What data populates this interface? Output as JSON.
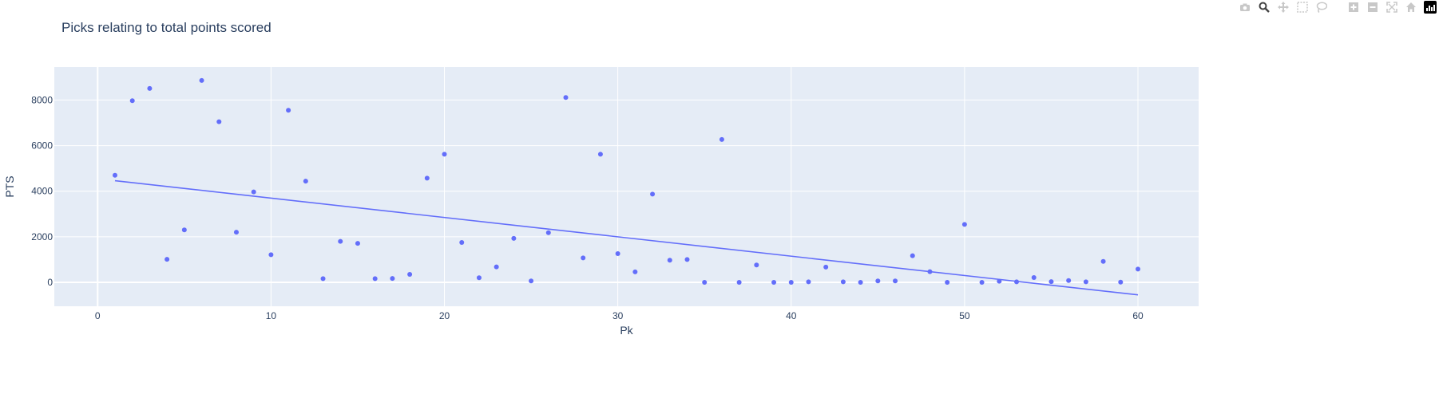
{
  "modebar": {
    "icons": [
      "camera-icon",
      "zoom-icon",
      "pan-icon",
      "box-select-icon",
      "lasso-icon",
      "zoom-in-icon",
      "zoom-out-icon",
      "autoscale-icon",
      "reset-axes-icon",
      "plotly-logo-icon"
    ],
    "active": "zoom-icon",
    "colors": {
      "inactive": "#c8c8c8",
      "active": "#444444"
    }
  },
  "chart_data": {
    "type": "scatter",
    "title": "Picks relating to total points scored",
    "xlabel": "Pk",
    "ylabel": "PTS",
    "xlim": [
      -2.5,
      63.5
    ],
    "ylim": [
      -1050,
      9450
    ],
    "x_ticks": [
      0,
      10,
      20,
      30,
      40,
      50,
      60
    ],
    "y_ticks": [
      0,
      2000,
      4000,
      6000,
      8000
    ],
    "y_tick_labels": [
      "0",
      "2000",
      "4000",
      "6000",
      "8000"
    ],
    "grid": true,
    "colors": {
      "plot_bg": "#e5ecf6",
      "grid": "#ffffff",
      "marker": "#636efa",
      "text": "#2a3f5f"
    },
    "series": [
      {
        "mode": "markers",
        "x": [
          1,
          2,
          3,
          4,
          5,
          6,
          7,
          8,
          9,
          10,
          11,
          12,
          13,
          14,
          15,
          16,
          17,
          18,
          19,
          20,
          21,
          22,
          23,
          24,
          25,
          26,
          27,
          28,
          29,
          30,
          31,
          32,
          33,
          34,
          35,
          36,
          37,
          38,
          39,
          40,
          41,
          42,
          43,
          44,
          45,
          46,
          47,
          48,
          49,
          50,
          51,
          52,
          53,
          54,
          55,
          56,
          57,
          58,
          59,
          60
        ],
        "y": [
          4700,
          7970,
          8510,
          1010,
          2300,
          8860,
          7050,
          2200,
          3970,
          1210,
          7550,
          4440,
          160,
          1800,
          1710,
          160,
          170,
          350,
          4570,
          5620,
          1750,
          200,
          680,
          1930,
          60,
          2180,
          8110,
          1070,
          5620,
          1260,
          460,
          3870,
          970,
          1000,
          0,
          6270,
          0,
          760,
          0,
          0,
          20,
          670,
          20,
          0,
          60,
          60,
          1170,
          470,
          0,
          2540,
          0,
          50,
          20,
          210,
          30,
          80,
          20,
          920,
          10,
          580
        ]
      },
      {
        "mode": "lines",
        "x": [
          1,
          60
        ],
        "y": [
          4460,
          -550
        ]
      }
    ]
  }
}
